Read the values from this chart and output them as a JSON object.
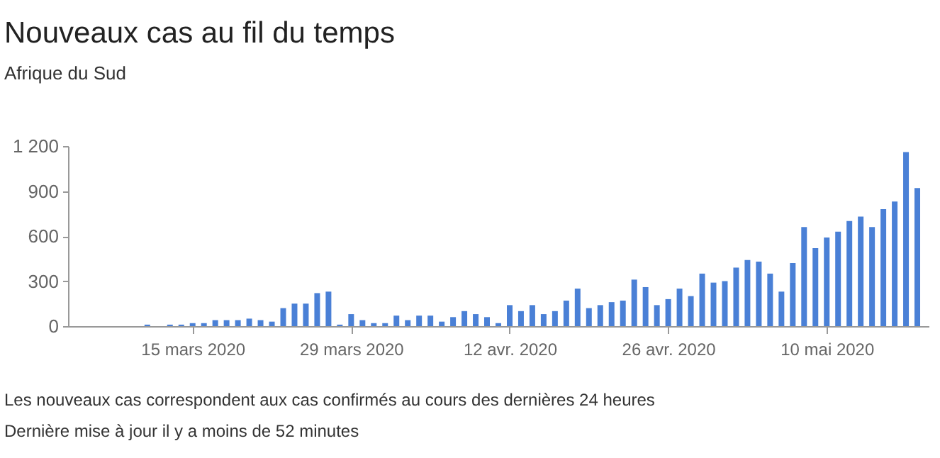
{
  "chart_data": {
    "type": "bar",
    "title": "Nouveaux cas au fil du temps",
    "subtitle": "Afrique du Sud",
    "x": [
      "2020-03-05",
      "2020-03-06",
      "2020-03-07",
      "2020-03-08",
      "2020-03-09",
      "2020-03-10",
      "2020-03-11",
      "2020-03-12",
      "2020-03-13",
      "2020-03-14",
      "2020-03-15",
      "2020-03-16",
      "2020-03-17",
      "2020-03-18",
      "2020-03-19",
      "2020-03-20",
      "2020-03-21",
      "2020-03-22",
      "2020-03-23",
      "2020-03-24",
      "2020-03-25",
      "2020-03-26",
      "2020-03-27",
      "2020-03-28",
      "2020-03-29",
      "2020-03-30",
      "2020-03-31",
      "2020-04-01",
      "2020-04-02",
      "2020-04-03",
      "2020-04-04",
      "2020-04-05",
      "2020-04-06",
      "2020-04-07",
      "2020-04-08",
      "2020-04-09",
      "2020-04-10",
      "2020-04-11",
      "2020-04-12",
      "2020-04-13",
      "2020-04-14",
      "2020-04-15",
      "2020-04-16",
      "2020-04-17",
      "2020-04-18",
      "2020-04-19",
      "2020-04-20",
      "2020-04-21",
      "2020-04-22",
      "2020-04-23",
      "2020-04-24",
      "2020-04-25",
      "2020-04-26",
      "2020-04-27",
      "2020-04-28",
      "2020-04-29",
      "2020-04-30",
      "2020-05-01",
      "2020-05-02",
      "2020-05-03",
      "2020-05-04",
      "2020-05-05",
      "2020-05-06",
      "2020-05-07",
      "2020-05-08",
      "2020-05-09",
      "2020-05-10",
      "2020-05-11",
      "2020-05-12",
      "2020-05-13",
      "2020-05-14",
      "2020-05-15",
      "2020-05-16",
      "2020-05-17",
      "2020-05-18"
    ],
    "values": [
      0,
      0,
      0,
      0,
      0,
      0,
      10,
      0,
      10,
      10,
      20,
      20,
      40,
      40,
      40,
      50,
      40,
      30,
      120,
      150,
      150,
      220,
      230,
      10,
      80,
      40,
      20,
      20,
      70,
      40,
      70,
      70,
      30,
      60,
      100,
      80,
      60,
      20,
      140,
      100,
      140,
      80,
      100,
      170,
      250,
      120,
      140,
      160,
      170,
      310,
      260,
      140,
      180,
      250,
      200,
      350,
      290,
      300,
      390,
      440,
      430,
      350,
      230,
      420,
      660,
      520,
      590,
      630,
      700,
      730,
      660,
      780,
      830,
      1160,
      920
    ],
    "color": "#4a80d6",
    "xlim": [
      "2020-03-04",
      "2020-05-19"
    ],
    "xticks": [
      {
        "value": "2020-03-15",
        "label": "15 mars 2020"
      },
      {
        "value": "2020-03-29",
        "label": "29 mars 2020"
      },
      {
        "value": "2020-04-12",
        "label": "12 avr. 2020"
      },
      {
        "value": "2020-04-26",
        "label": "26 avr. 2020"
      },
      {
        "value": "2020-05-10",
        "label": "10 mai 2020"
      }
    ],
    "ylim": [
      0,
      1200
    ],
    "yticks": [
      0,
      300,
      600,
      900,
      {
        "value": 1200,
        "label": "1 200"
      }
    ],
    "grid": false,
    "annotations": [
      "Les nouveaux cas correspondent aux cas confirmés au cours des dernières 24 heures",
      "Dernière mise à jour il y a moins de 52 minutes"
    ]
  }
}
